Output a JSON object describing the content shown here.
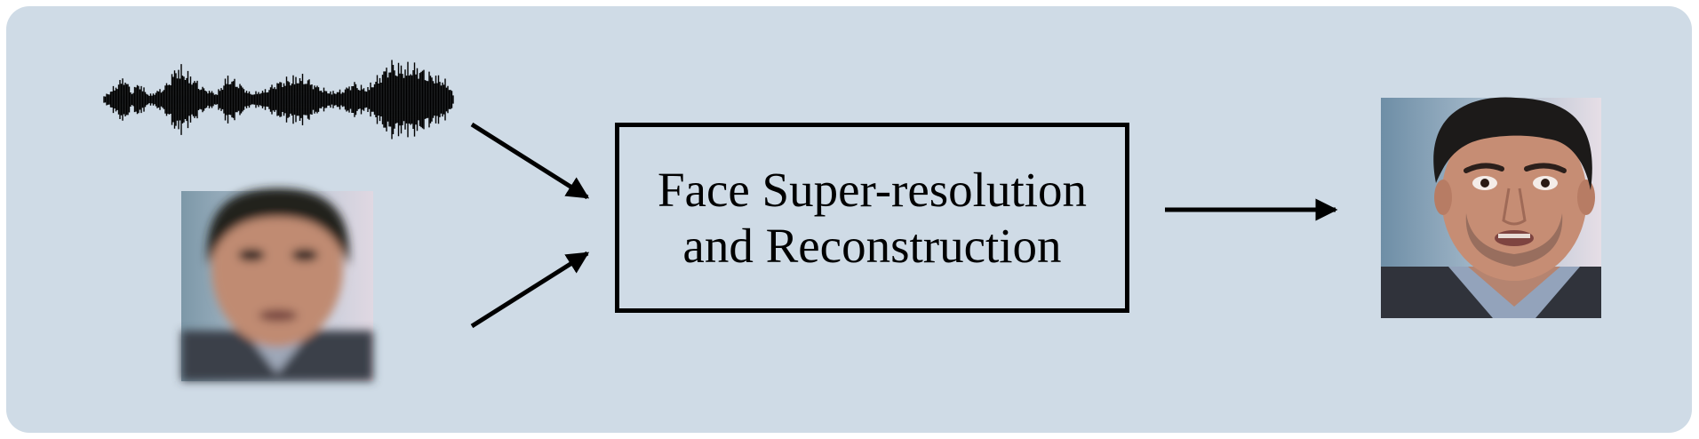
{
  "diagram": {
    "process_box": {
      "line1": "Face Super-resolution",
      "line2": "and Reconstruction"
    },
    "inputs": {
      "audio": {
        "icon": "audio-waveform-icon"
      },
      "low_res_face": {
        "icon": "low-resolution-face-image"
      }
    },
    "output": {
      "high_res_face": {
        "icon": "high-resolution-face-image"
      }
    }
  }
}
